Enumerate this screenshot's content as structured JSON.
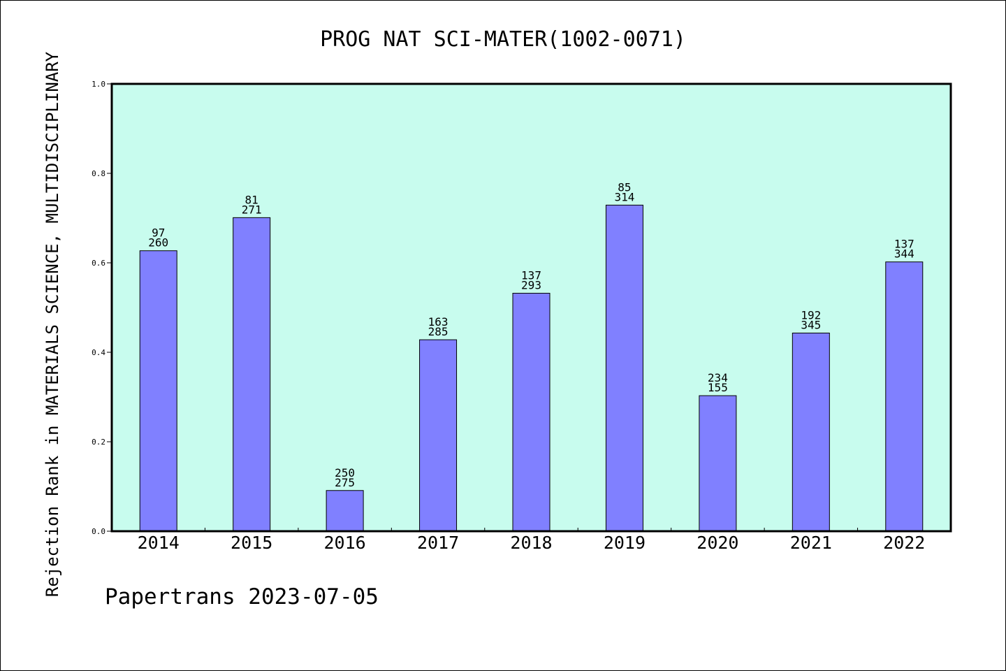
{
  "chart_data": {
    "type": "bar",
    "title": "PROG NAT SCI-MATER(1002-0071)",
    "ylabel": "Rejection Rank in MATERIALS SCIENCE, MULTIDISCIPLINARY",
    "xlabel": "",
    "categories": [
      "2014",
      "2015",
      "2016",
      "2017",
      "2018",
      "2019",
      "2020",
      "2021",
      "2022"
    ],
    "values": [
      0.627,
      0.701,
      0.091,
      0.428,
      0.532,
      0.729,
      0.303,
      0.443,
      0.602
    ],
    "label_top": [
      "97",
      "81",
      "250",
      "163",
      "137",
      "85",
      "234",
      "192",
      "137"
    ],
    "label_bottom": [
      "260",
      "271",
      "275",
      "285",
      "293",
      "314",
      "155",
      "345",
      "344"
    ],
    "ylim": [
      0,
      1.0
    ],
    "yticks": [
      "0.0",
      "0.2",
      "0.4",
      "0.6",
      "0.8",
      "1.0"
    ],
    "grid": false,
    "plot_background": "#c8fcee",
    "bar_color": "#8080ff"
  },
  "footer": "Papertrans 2023-07-05"
}
